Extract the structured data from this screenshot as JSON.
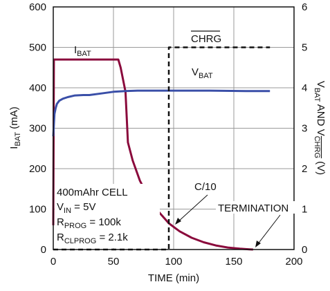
{
  "chart_data": {
    "type": "line",
    "xlabel": "TIME (min)",
    "ylabel_left": {
      "main": "I",
      "sub": "BAT",
      "tail": " (mA)"
    },
    "ylabel_right": {
      "p1": "V",
      "s1": "BAT",
      "p2": " AND V",
      "s2": "CHRG",
      "tail": " (V)"
    },
    "xlim": [
      0,
      200
    ],
    "ylim_left": [
      0,
      600
    ],
    "ylim_right": [
      0,
      6
    ],
    "xticks": [
      "0",
      "50",
      "100",
      "150",
      "200"
    ],
    "yticks_left": [
      "0",
      "100",
      "200",
      "300",
      "400",
      "500",
      "600"
    ],
    "yticks_right": [
      "0",
      "1",
      "2",
      "3",
      "4",
      "5",
      "6"
    ],
    "grid": true,
    "series": [
      {
        "name": "I_BAT",
        "axis": "left",
        "color": "#8a0a3c",
        "style": "solid",
        "x": [
          0,
          0.5,
          1,
          40,
          54,
          56,
          60,
          62,
          66,
          72,
          80,
          88,
          96,
          105,
          115,
          125,
          135,
          145,
          155,
          163,
          166
        ],
        "y": [
          60,
          470,
          470,
          470,
          470,
          450,
          390,
          265,
          220,
          170,
          125,
          92,
          65,
          45,
          29,
          18,
          10,
          5,
          2,
          0.5,
          0
        ]
      },
      {
        "name": "V_BAT",
        "axis": "right",
        "color": "#3a4fa8",
        "style": "solid",
        "x": [
          0,
          0.5,
          1,
          2,
          3,
          5,
          8,
          12,
          18,
          25,
          30,
          40,
          50,
          60,
          70,
          100,
          130,
          160,
          180
        ],
        "y": [
          2.8,
          3.1,
          3.35,
          3.5,
          3.6,
          3.68,
          3.73,
          3.77,
          3.81,
          3.82,
          3.82,
          3.86,
          3.9,
          3.92,
          3.93,
          3.93,
          3.93,
          3.92,
          3.92
        ]
      },
      {
        "name": "CHRG",
        "axis": "right",
        "color": "#111111",
        "style": "dashed",
        "x": [
          0,
          96,
          96,
          180
        ],
        "y": [
          0,
          0,
          5,
          5
        ]
      }
    ],
    "series_labels": {
      "ibat": {
        "main": "I",
        "sub": "BAT"
      },
      "vbat": {
        "main": "V",
        "sub": "BAT"
      },
      "chrg": "CHRG"
    },
    "annotations": {
      "cell": "400mAhr CELL",
      "vin": {
        "main": "V",
        "sub": "IN",
        "tail": " = 5V"
      },
      "rprog": {
        "main": "R",
        "sub": "PROG",
        "tail": " = 100k"
      },
      "rclprog": {
        "main": "R",
        "sub": "CLPROG",
        "tail": " = 2.1k"
      },
      "c10": "C/10",
      "termination": "TERMINATION"
    }
  }
}
